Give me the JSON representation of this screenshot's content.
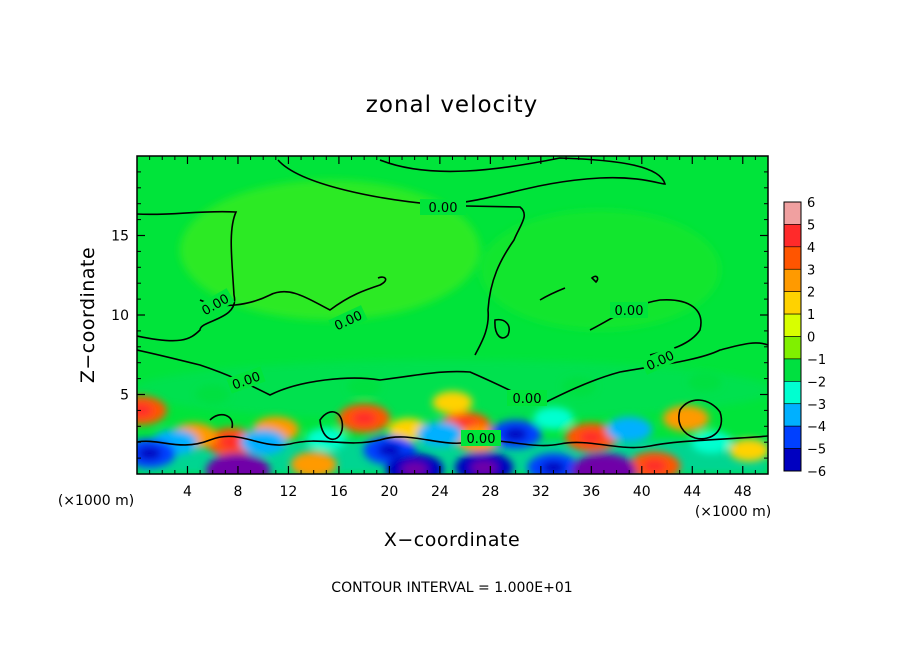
{
  "chart_data": {
    "type": "heatmap",
    "title": "zonal velocity",
    "xlabel": "X−coordinate",
    "ylabel": "Z−coordinate",
    "x_unit": "(×1000 m)",
    "y_unit": "(×1000 m)",
    "xlim": [
      0,
      50
    ],
    "ylim": [
      0,
      20
    ],
    "x_ticks": [
      4,
      8,
      12,
      16,
      20,
      24,
      28,
      32,
      36,
      40,
      44,
      48
    ],
    "y_ticks": [
      5,
      10,
      15
    ],
    "colorbar": {
      "levels": [
        6,
        5,
        4,
        3,
        2,
        1,
        0,
        -1,
        -2,
        -3,
        -4,
        -5,
        -6
      ],
      "level_labels": [
        "6",
        "5",
        "4",
        "3",
        "2",
        "1",
        "0",
        "−1",
        "−2",
        "−3",
        "−4",
        "−5",
        "−6"
      ],
      "colors": [
        "#f0a0a0",
        "#ff2a2a",
        "#ff5500",
        "#ff9a00",
        "#ffd200",
        "#d8ff00",
        "#80f000",
        "#00e040",
        "#00ffd0",
        "#00b0ff",
        "#0040ff",
        "#0000c0",
        "#7000a8"
      ]
    },
    "contour_level": "0.00",
    "contour_label_count": 9,
    "features": [
      {
        "x": 7.5,
        "z": 2.0,
        "value": 4
      },
      {
        "x": 4.5,
        "z": 2.4,
        "value": 3
      },
      {
        "x": 0.3,
        "z": 4.0,
        "value": 4
      },
      {
        "x": 18.0,
        "z": 3.5,
        "value": 4
      },
      {
        "x": 26.0,
        "z": 3.0,
        "value": 4
      },
      {
        "x": 27.0,
        "z": 2.2,
        "value": 3
      },
      {
        "x": 36.0,
        "z": 2.3,
        "value": 4
      },
      {
        "x": 41.0,
        "z": 0.5,
        "value": 4
      },
      {
        "x": 43.5,
        "z": 3.5,
        "value": 3
      },
      {
        "x": 48.5,
        "z": 1.5,
        "value": 2
      },
      {
        "x": 11.0,
        "z": 2.8,
        "value": 3
      },
      {
        "x": 14.0,
        "z": 0.6,
        "value": 3
      },
      {
        "x": 21.5,
        "z": 2.8,
        "value": 2
      },
      {
        "x": 25.0,
        "z": 4.5,
        "value": 2
      },
      {
        "x": 3.0,
        "z": 2.0,
        "value": -3
      },
      {
        "x": 1.0,
        "z": 1.3,
        "value": -4
      },
      {
        "x": 10.0,
        "z": 2.0,
        "value": -3
      },
      {
        "x": 15.0,
        "z": 2.2,
        "value": -2
      },
      {
        "x": 20.0,
        "z": 1.5,
        "value": -4
      },
      {
        "x": 24.0,
        "z": 2.5,
        "value": -3
      },
      {
        "x": 30.0,
        "z": 2.5,
        "value": -4
      },
      {
        "x": 33.0,
        "z": 3.5,
        "value": -2
      },
      {
        "x": 39.0,
        "z": 2.8,
        "value": -3
      },
      {
        "x": 45.5,
        "z": 2.0,
        "value": -2
      },
      {
        "x": 8.0,
        "z": 0.2,
        "value": -6
      },
      {
        "x": 22.0,
        "z": 0.3,
        "value": -5
      },
      {
        "x": 27.5,
        "z": 0.4,
        "value": -5
      },
      {
        "x": 33.0,
        "z": 0.4,
        "value": -4
      },
      {
        "x": 37.0,
        "z": 0.2,
        "value": -6
      },
      {
        "x": 6.0,
        "z": 5.0,
        "value": -1
      },
      {
        "x": 18.0,
        "z": 5.5,
        "value": -1
      },
      {
        "x": 35.0,
        "z": 5.5,
        "value": -1
      },
      {
        "x": 45.0,
        "z": 5.8,
        "value": -1
      }
    ]
  },
  "footer": "CONTOUR INTERVAL = 1.000E+01"
}
